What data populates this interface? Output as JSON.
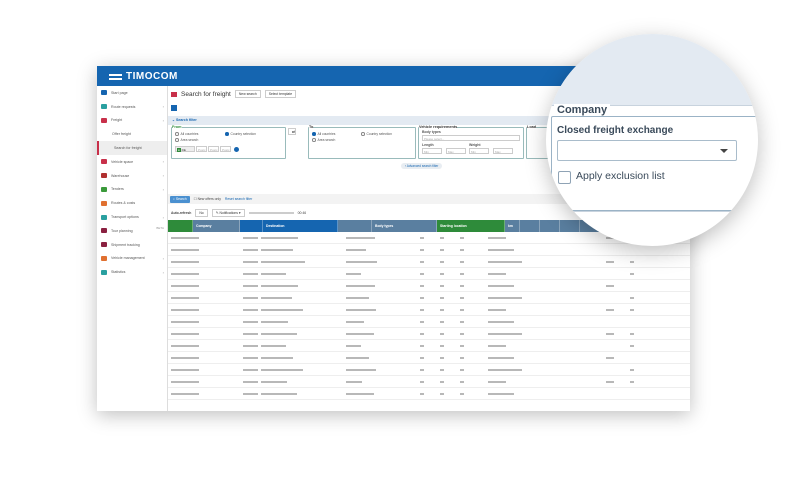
{
  "brand": {
    "name": "TIMOCOM",
    "color": "#1565b0"
  },
  "sidebar": {
    "items": [
      {
        "label": "Start page",
        "icon": "grid-icon",
        "color": "#1565b0",
        "chev": false
      },
      {
        "label": "Route requests",
        "icon": "route-icon",
        "color": "#2aa0a0",
        "chev": true
      },
      {
        "label": "Freight",
        "icon": "freight-icon",
        "color": "#c8304a",
        "chev": true
      },
      {
        "label": "Offer freight",
        "sub": true
      },
      {
        "label": "Search for freight",
        "sub": true,
        "active": true
      },
      {
        "label": "Vehicle space",
        "icon": "truck-icon",
        "color": "#c8304a",
        "chev": true
      },
      {
        "label": "Warehouse",
        "icon": "warehouse-icon",
        "color": "#b03030",
        "chev": true
      },
      {
        "label": "Tenders",
        "icon": "tenders-icon",
        "color": "#3a9a3a",
        "chev": true
      },
      {
        "label": "Routes & costs",
        "icon": "routes-icon",
        "color": "#e07030",
        "chev": false
      },
      {
        "label": "Transport options",
        "icon": "transport-icon",
        "color": "#2aa0a0",
        "chev": true
      },
      {
        "label": "Tour planning",
        "icon": "tour-icon",
        "color": "#8a2040",
        "beta": "BETA"
      },
      {
        "label": "Shipment tracking",
        "icon": "tracking-icon",
        "color": "#8a2040"
      },
      {
        "label": "Vehicle management",
        "icon": "vehicle-icon",
        "color": "#e07030",
        "chev": true
      },
      {
        "label": "Statistics",
        "icon": "statistics-icon",
        "color": "#2aa0a0",
        "chev": true
      }
    ]
  },
  "page": {
    "title": "Search for freight",
    "new_search": "New search",
    "select_template": "Select template"
  },
  "filter": {
    "title": "Search filter",
    "from": {
      "legend": "From",
      "all": "All countries",
      "country": "Country selection",
      "area": "Area search",
      "country_value": "DE",
      "postcode_placeholder": "Postc"
    },
    "to": {
      "legend": "To",
      "all": "All countries",
      "country": "Country selection",
      "area": "Area search"
    },
    "vehicle": {
      "legend": "Vehicle requirements",
      "body_types": "Body types",
      "body_placeholder": "Please select...",
      "length": "Length",
      "weight": "Weight",
      "min": "Min",
      "max": "Max",
      "unit_length": "m",
      "unit_weight": "t"
    },
    "load_legend": "Load",
    "advanced": "Advanced search filter"
  },
  "toolbar": {
    "search": "Search",
    "new_offers": "New offers only",
    "reset": "Reset search filter"
  },
  "refresh": {
    "label": "Auto-refresh",
    "toggle": "No",
    "notifications": "Notifications",
    "timer": "00:46"
  },
  "table": {
    "columns": [
      {
        "label": "",
        "color": "#2e8b3a",
        "w": 25
      },
      {
        "label": "Company",
        "color": "#5a7fa0",
        "w": 47
      },
      {
        "label": "",
        "color": "#1565b0",
        "w": 23
      },
      {
        "label": "Destination",
        "color": "#1565b0",
        "w": 75
      },
      {
        "label": "",
        "color": "#5a7fa0",
        "w": 34
      },
      {
        "label": "Body types",
        "color": "#5a7fa0",
        "w": 65
      },
      {
        "label": "Starting location",
        "color": "#2e8b3a",
        "w": 68
      },
      {
        "label": "km",
        "color": "#5a7fa0",
        "w": 15
      },
      {
        "label": "",
        "color": "#5a7fa0",
        "w": 20
      },
      {
        "label": "",
        "color": "#5a7fa0",
        "w": 20
      },
      {
        "label": "",
        "color": "#5a7fa0",
        "w": 20
      },
      {
        "label": "",
        "color": "#5a7fa0",
        "w": 110
      }
    ]
  },
  "magnifier": {
    "legend": "Company",
    "closed_exchange": "Closed freight exchange",
    "exclusion": "Apply exclusion list"
  }
}
